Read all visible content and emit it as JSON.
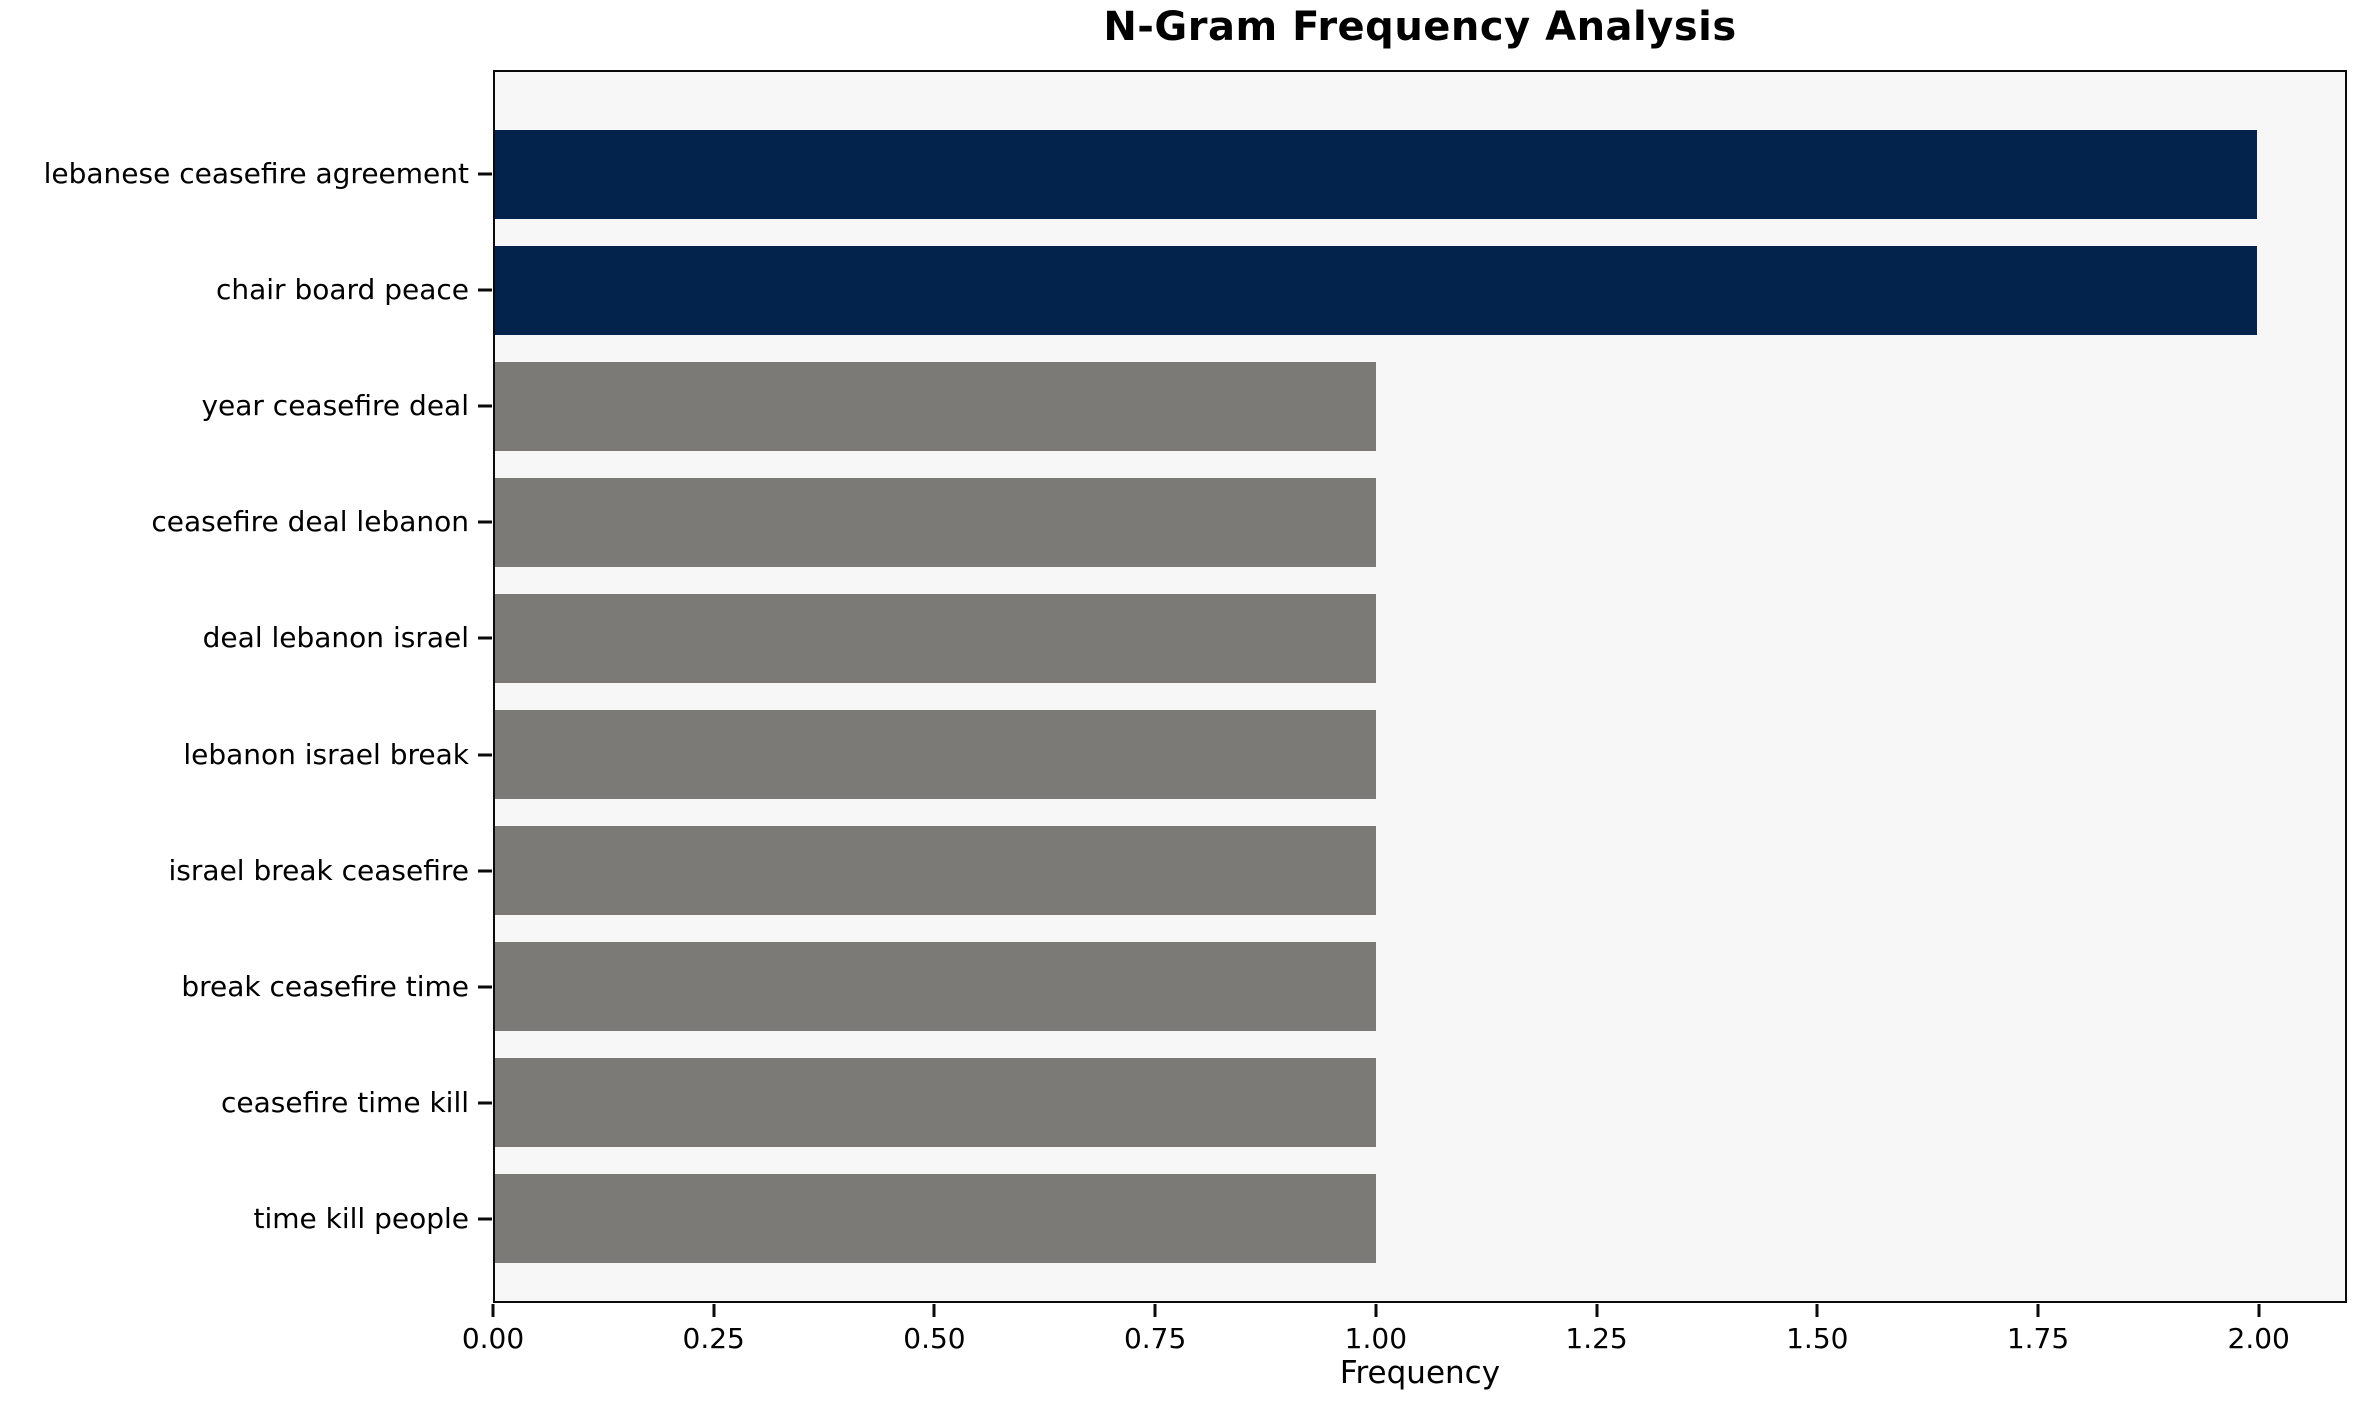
{
  "chart_data": {
    "type": "bar",
    "orientation": "horizontal",
    "title": "N-Gram Frequency Analysis",
    "xlabel": "Frequency",
    "ylabel": "",
    "categories": [
      "lebanese ceasefire agreement",
      "chair board peace",
      "year ceasefire deal",
      "ceasefire deal lebanon",
      "deal lebanon israel",
      "lebanon israel break",
      "israel break ceasefire",
      "break ceasefire time",
      "ceasefire time kill",
      "time kill people"
    ],
    "values": [
      2.0,
      2.0,
      1.0,
      1.0,
      1.0,
      1.0,
      1.0,
      1.0,
      1.0,
      1.0
    ],
    "bar_colors": [
      "#03234D",
      "#03234D",
      "#7B7A77",
      "#7B7A77",
      "#7B7A77",
      "#7B7A77",
      "#7B7A77",
      "#7B7A77",
      "#7B7A77",
      "#7B7A77"
    ],
    "x_ticks": [
      0.0,
      0.25,
      0.5,
      0.75,
      1.0,
      1.25,
      1.5,
      1.75,
      2.0
    ],
    "x_tick_labels": [
      "0.00",
      "0.25",
      "0.50",
      "0.75",
      "1.00",
      "1.25",
      "1.50",
      "1.75",
      "2.00"
    ],
    "xlim": [
      0,
      2.1
    ],
    "grid": false,
    "legend_position": "none",
    "plot_background": "#F7F7F7",
    "figure_background": "#FFFFFF",
    "highlight_color": "#03234D",
    "default_color": "#7B7A77",
    "axis_color": "#0A0A0A"
  }
}
